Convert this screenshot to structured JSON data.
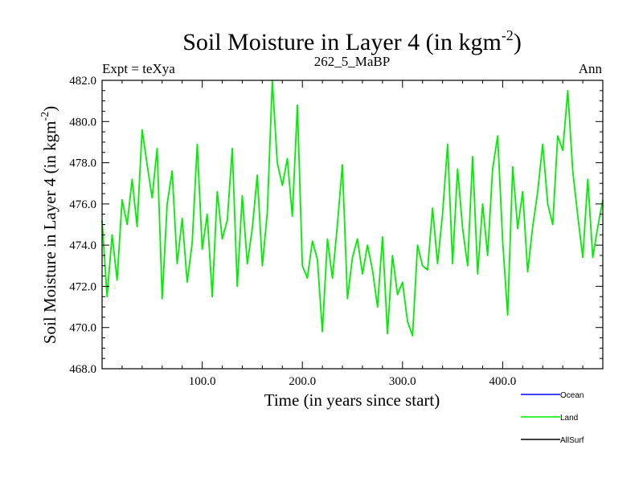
{
  "chart_data": {
    "type": "line",
    "title": "Soil Moisture in Layer 4 (in kgm",
    "title_sup": "-2",
    "title_close": ")",
    "left_label": "Expt = teXya",
    "center_label": "262_5_MaBP",
    "right_label": "Ann",
    "xlabel": "Time (in years since start)",
    "ylabel": "Soil Moisture in Layer 4 (in kgm",
    "ylabel_sup": "-2",
    "ylabel_close": ")",
    "xlim": [
      0,
      500
    ],
    "ylim": [
      468,
      482
    ],
    "xticks": [
      100,
      200,
      300,
      400
    ],
    "xtick_labels": [
      "100.0",
      "200.0",
      "300.0",
      "400.0"
    ],
    "yticks": [
      468,
      470,
      472,
      474,
      476,
      478,
      480,
      482
    ],
    "ytick_labels": [
      "468.0",
      "470.0",
      "472.0",
      "474.0",
      "476.0",
      "478.0",
      "480.0",
      "482.0"
    ],
    "legend_placement": "bottom-right, below plot",
    "series": [
      {
        "name": "Land",
        "color": "#00ee00",
        "x": [
          0,
          5,
          10,
          15,
          20,
          25,
          30,
          35,
          40,
          45,
          50,
          55,
          60,
          65,
          70,
          75,
          80,
          85,
          90,
          95,
          100,
          105,
          110,
          115,
          120,
          125,
          130,
          135,
          140,
          145,
          150,
          155,
          160,
          165,
          170,
          175,
          180,
          185,
          190,
          195,
          200,
          205,
          210,
          215,
          220,
          225,
          230,
          235,
          240,
          245,
          250,
          255,
          260,
          265,
          270,
          275,
          280,
          285,
          290,
          295,
          300,
          305,
          310,
          315,
          320,
          325,
          330,
          335,
          340,
          345,
          350,
          355,
          360,
          365,
          370,
          375,
          380,
          385,
          390,
          395,
          400,
          405,
          410,
          415,
          420,
          425,
          430,
          435,
          440,
          445,
          450,
          455,
          460,
          465,
          470,
          475,
          480,
          485,
          490,
          495,
          500
        ],
        "y": [
          475.2,
          471.5,
          474.5,
          472.3,
          476.2,
          475.0,
          477.2,
          474.9,
          479.6,
          477.9,
          476.3,
          478.7,
          471.4,
          476.0,
          477.6,
          473.1,
          475.3,
          472.2,
          474.1,
          478.9,
          473.8,
          475.5,
          471.5,
          476.6,
          474.3,
          475.2,
          478.7,
          472.0,
          476.4,
          473.1,
          474.8,
          477.4,
          473.0,
          475.6,
          482.0,
          478.0,
          476.9,
          478.2,
          475.4,
          480.8,
          473.0,
          472.4,
          474.2,
          473.3,
          469.8,
          474.3,
          472.4,
          475.0,
          477.9,
          471.4,
          473.4,
          474.3,
          472.6,
          474.0,
          472.8,
          471.0,
          474.4,
          469.7,
          473.5,
          471.6,
          472.2,
          470.3,
          469.6,
          474.0,
          473.0,
          472.8,
          475.8,
          473.1,
          475.5,
          478.9,
          473.1,
          477.7,
          474.8,
          473.0,
          478.3,
          472.6,
          476.0,
          473.5,
          477.7,
          479.3,
          474.2,
          470.6,
          477.8,
          474.8,
          476.6,
          472.7,
          474.9,
          476.6,
          478.9,
          476.0,
          475.0,
          479.3,
          478.6,
          481.5,
          477.6,
          475.4,
          473.4,
          477.2,
          473.4,
          474.9,
          476.2
        ]
      }
    ],
    "legend": [
      {
        "name": "Ocean",
        "color": "#0000ff"
      },
      {
        "name": "Land",
        "color": "#00ee00"
      },
      {
        "name": "AllSurf",
        "color": "#000000"
      }
    ]
  }
}
